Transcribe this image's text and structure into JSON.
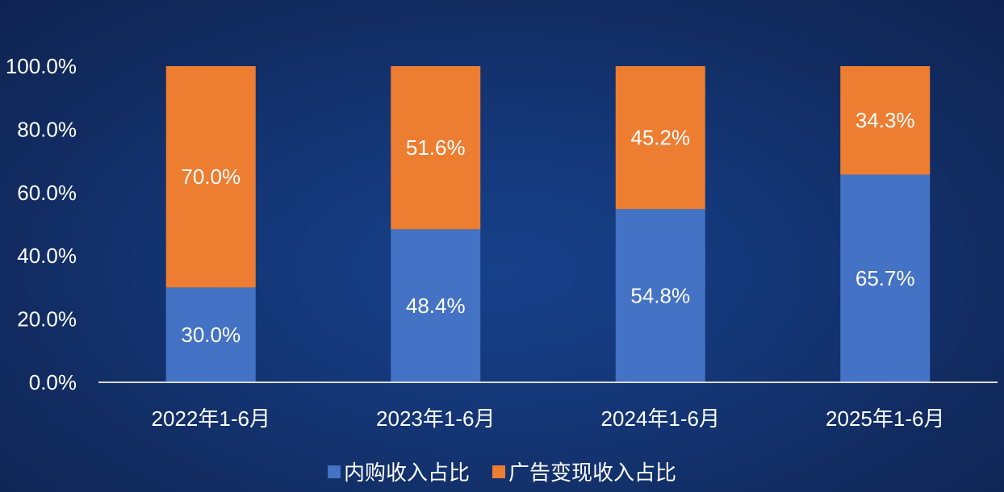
{
  "chart_data": {
    "type": "bar",
    "stacked": true,
    "categories": [
      "2022年1-6月",
      "2023年1-6月",
      "2024年1-6月",
      "2025年1-6月"
    ],
    "series": [
      {
        "name": "内购收入占比",
        "values": [
          30.0,
          48.4,
          54.8,
          65.7
        ],
        "labels": [
          "30.0%",
          "48.4%",
          "54.8%",
          "65.7%"
        ],
        "color": "#4472c4"
      },
      {
        "name": "广告变现收入占比",
        "values": [
          70.0,
          51.6,
          45.2,
          34.3
        ],
        "labels": [
          "70.0%",
          "51.6%",
          "45.2%",
          "34.3%"
        ],
        "color": "#ed7d31"
      }
    ],
    "ylim": [
      0,
      100
    ],
    "yticks": [
      "0.0%",
      "20.0%",
      "40.0%",
      "60.0%",
      "80.0%",
      "100.0%"
    ],
    "grid": false,
    "legend_position": "bottom-center"
  }
}
